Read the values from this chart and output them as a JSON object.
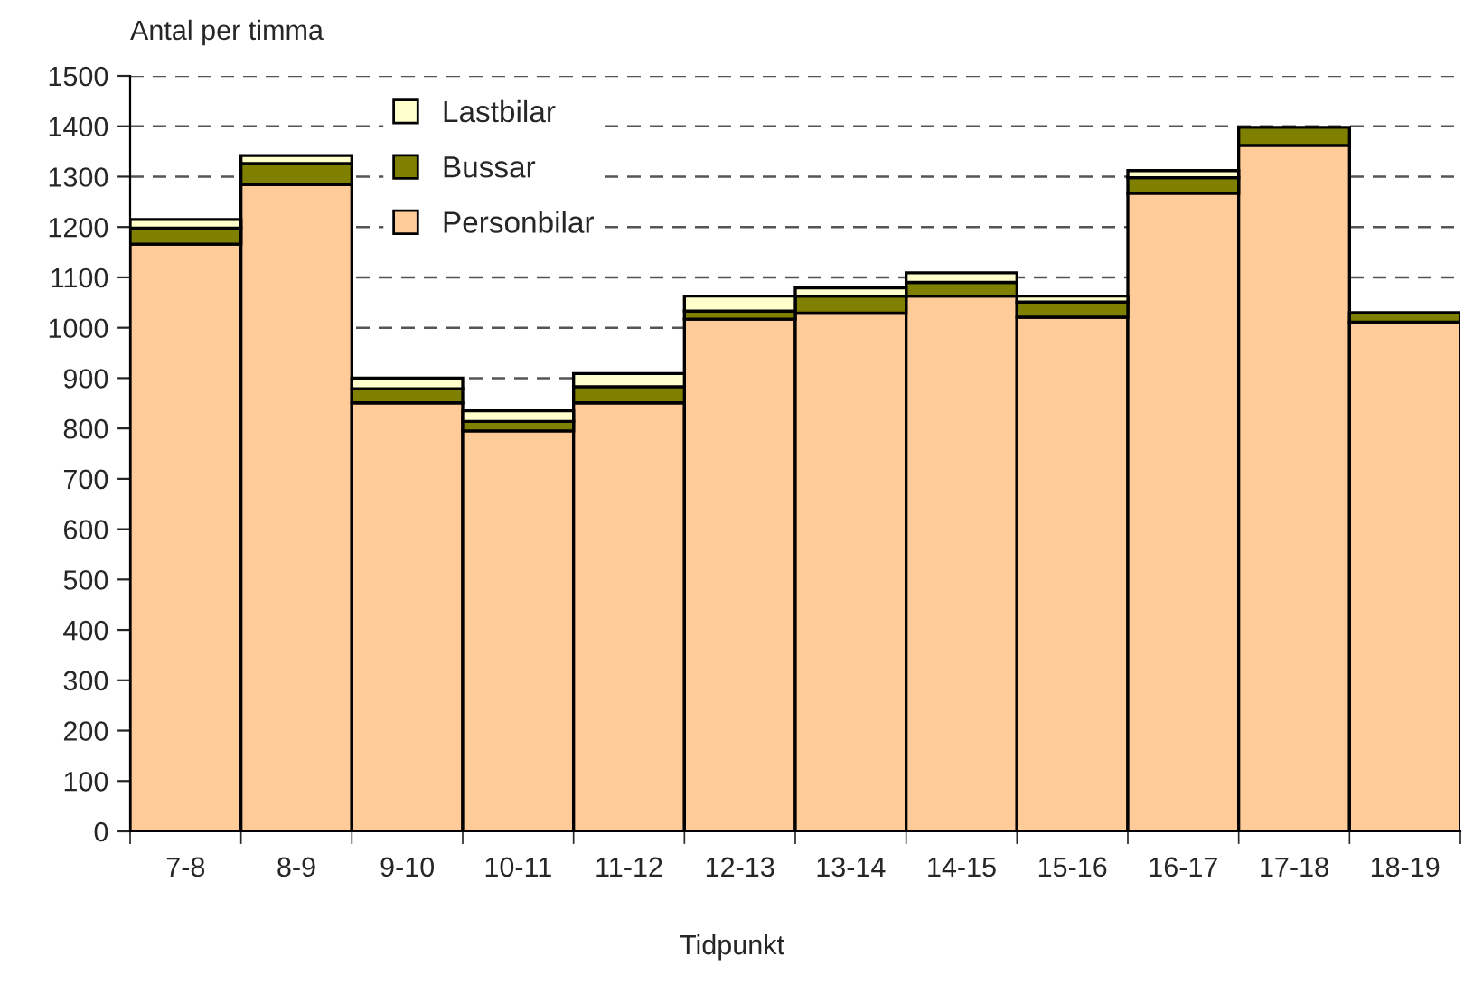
{
  "chart_data": {
    "type": "bar",
    "stacked": true,
    "ylabel": "Antal per timma",
    "xlabel": "Tidpunkt",
    "categories": [
      "7-8",
      "8-9",
      "9-10",
      "10-11",
      "11-12",
      "12-13",
      "13-14",
      "14-15",
      "15-16",
      "16-17",
      "17-18",
      "18-19"
    ],
    "series": [
      {
        "name": "Personbilar",
        "color": "#ffcc99",
        "values": [
          1166,
          1284,
          851,
          795,
          851,
          1017,
          1029,
          1063,
          1021,
          1267,
          1362,
          1011
        ]
      },
      {
        "name": "Bussar",
        "color": "#808000",
        "values": [
          32,
          42,
          28,
          19,
          32,
          16,
          34,
          27,
          30,
          31,
          36,
          19
        ]
      },
      {
        "name": "Lastbilar",
        "color": "#ffffcc",
        "values": [
          17,
          16,
          21,
          21,
          26,
          30,
          16,
          19,
          12,
          14,
          null,
          null
        ]
      }
    ],
    "ylim": [
      0,
      1500
    ],
    "yticks": [
      0,
      100,
      200,
      300,
      400,
      500,
      600,
      700,
      800,
      900,
      1000,
      1100,
      1200,
      1300,
      1400,
      1500
    ],
    "grid": "y",
    "legend": "top left"
  }
}
